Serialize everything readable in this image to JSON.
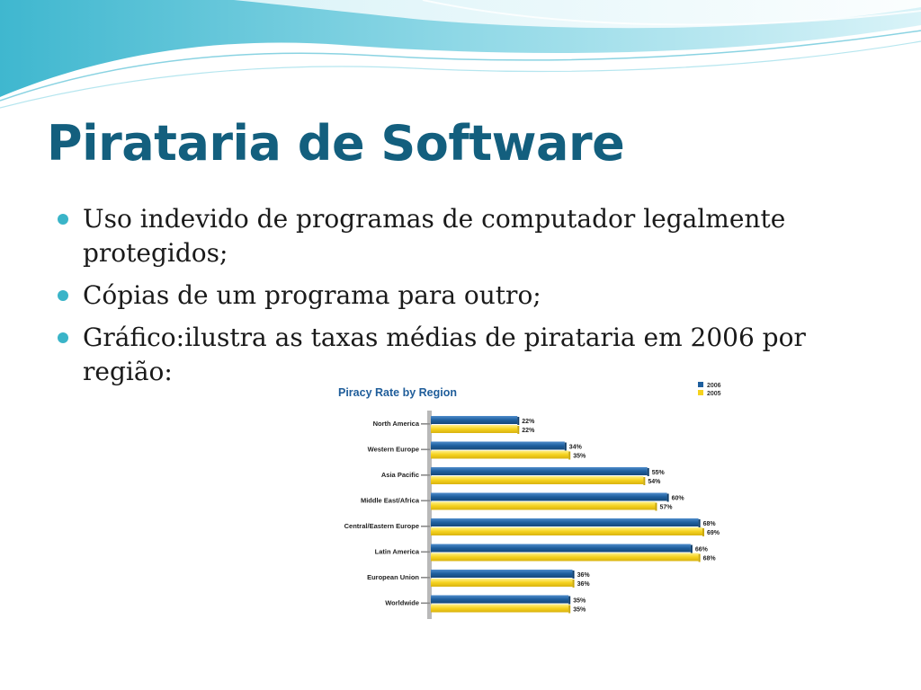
{
  "slide": {
    "title": "Pirataria de Software",
    "bullets": [
      "Uso indevido de programas de computador legalmente protegidos;",
      "Cópias de um programa para outro;",
      "Gráfico:ilustra as taxas médias de pirataria em 2006 por região:"
    ]
  },
  "colors": {
    "title": "#135f7e",
    "bullet": "#3ab4c8",
    "chart_title": "#1f5d9a",
    "series_2006": "#1e5f9e",
    "series_2005": "#f5d21e"
  },
  "chart_data": {
    "type": "bar",
    "orientation": "horizontal",
    "title": "Piracy Rate by Region",
    "categories": [
      "North America",
      "Western Europe",
      "Asia Pacific",
      "Middle East/Africa",
      "Central/Eastern Europe",
      "Latin America",
      "European Union",
      "Worldwide"
    ],
    "series": [
      {
        "name": "2006",
        "values": [
          22,
          34,
          55,
          60,
          68,
          66,
          36,
          35
        ]
      },
      {
        "name": "2005",
        "values": [
          22,
          35,
          54,
          57,
          69,
          68,
          36,
          35
        ]
      }
    ],
    "value_suffix": "%",
    "xlim": [
      0,
      69
    ],
    "legend": "top-right",
    "grid": false
  }
}
